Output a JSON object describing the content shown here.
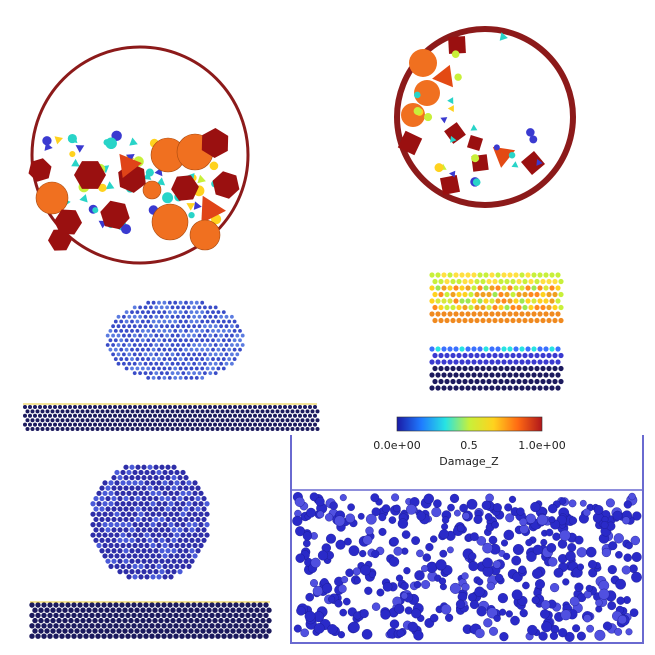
{
  "colorbar": {
    "min_label": "0.0e+00",
    "mid_label": "0.5",
    "max_label": "1.0e+00",
    "title": "Damage_Z",
    "colors": [
      "#1a1aa6",
      "#1f7bff",
      "#27e3e3",
      "#c8f03a",
      "#ffd21e",
      "#ff6a13",
      "#b0161b"
    ]
  },
  "palette": {
    "rim": "#8c1a1a",
    "dark_red": "#9a1010",
    "orange": "#f07020",
    "teal": "#28d4c8",
    "lime": "#c8f03a",
    "navy": "#1c1a5e",
    "blue": "#3a3ad0"
  }
}
